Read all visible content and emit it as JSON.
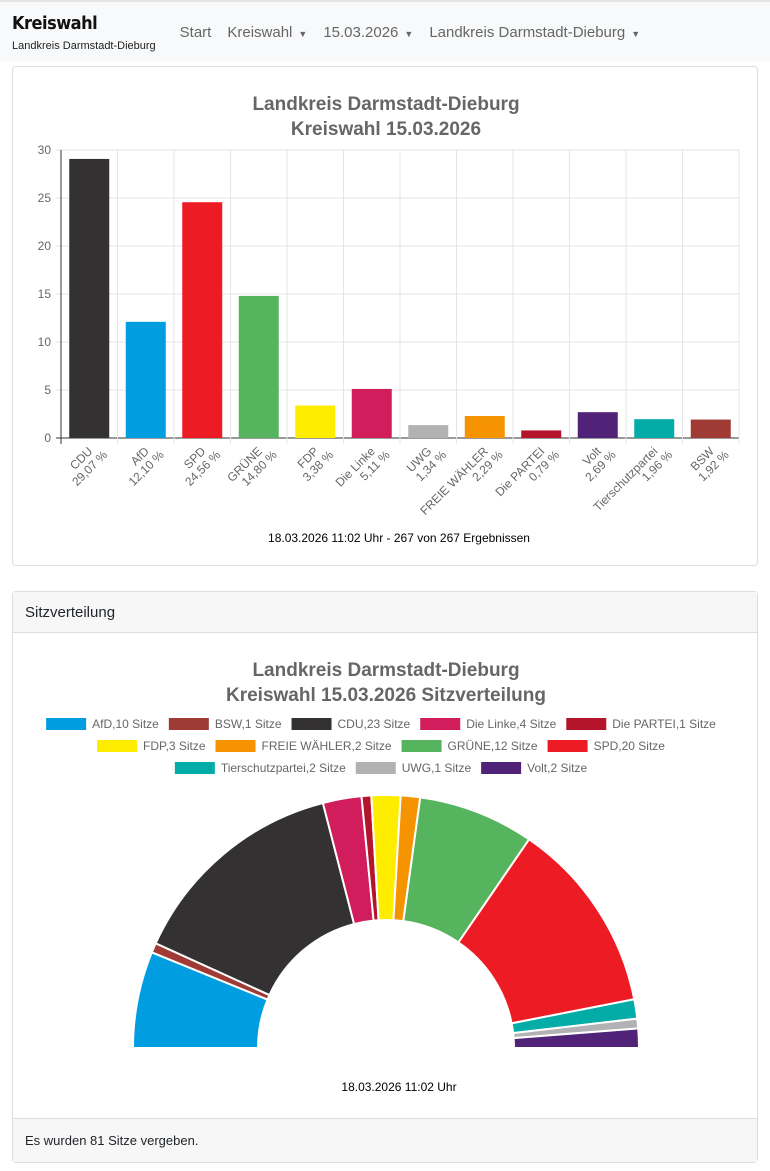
{
  "navbar": {
    "brand": "Kreiswahl",
    "subtitle": "Landkreis Darmstadt-Dieburg",
    "items": [
      {
        "label": "Start",
        "dropdown": false
      },
      {
        "label": "Kreiswahl",
        "dropdown": true
      },
      {
        "label": "15.03.2026",
        "dropdown": true
      },
      {
        "label": "Landkreis Darmstadt-Dieburg",
        "dropdown": true
      }
    ]
  },
  "chart_data": [
    {
      "type": "bar",
      "title": [
        "Landkreis Darmstadt-Dieburg",
        "Kreiswahl 15.03.2026"
      ],
      "ylim": [
        0,
        30
      ],
      "yticks": [
        0,
        5,
        10,
        15,
        20,
        25,
        30
      ],
      "grid": true,
      "categories": [
        "CDU",
        "AfD",
        "SPD",
        "GRÜNE",
        "FDP",
        "Die Linke",
        "UWG",
        "FREIE WÄHLER",
        "Die PARTEI",
        "Volt",
        "Tierschutzpartei",
        "BSW"
      ],
      "values": [
        29.07,
        12.1,
        24.56,
        14.8,
        3.38,
        5.11,
        1.34,
        2.29,
        0.79,
        2.69,
        1.96,
        1.92
      ],
      "value_labels": [
        "29,07 %",
        "12,10 %",
        "24,56 %",
        "14,80 %",
        "3,38 %",
        "5,11 %",
        "1,34 %",
        "2,29 %",
        "0,79 %",
        "2,69 %",
        "1,96 %",
        "1,92 %"
      ],
      "colors": [
        "#333132",
        "#009ee0",
        "#ed1c24",
        "#56b35e",
        "#ffed00",
        "#d21d5c",
        "#b2b1b3",
        "#f59300",
        "#b5152b",
        "#502379",
        "#04aca7",
        "#9f3a34"
      ],
      "footer": "18.03.2026 11:02 Uhr - 267 von 267 Ergebnissen"
    },
    {
      "type": "pie",
      "variant": "semicircle-doughnut",
      "title": [
        "Landkreis Darmstadt-Dieburg",
        "Kreiswahl 15.03.2026 Sitzverteilung"
      ],
      "legend": "top",
      "categories": [
        "AfD",
        "BSW",
        "CDU",
        "Die Linke",
        "Die PARTEI",
        "FDP",
        "FREIE WÄHLER",
        "GRÜNE",
        "SPD",
        "Tierschutzpartei",
        "UWG",
        "Volt"
      ],
      "values": [
        10,
        1,
        23,
        4,
        1,
        3,
        2,
        12,
        20,
        2,
        1,
        2
      ],
      "legend_labels": [
        "AfD,10 Sitze",
        "BSW,1 Sitze",
        "CDU,23 Sitze",
        "Die Linke,4 Sitze",
        "Die PARTEI,1 Sitze",
        "FDP,3 Sitze",
        "FREIE WÄHLER,2 Sitze",
        "GRÜNE,12 Sitze",
        "SPD,20 Sitze",
        "Tierschutzpartei,2 Sitze",
        "UWG,1 Sitze",
        "Volt,2 Sitze"
      ],
      "colors": [
        "#009ee0",
        "#9f3a34",
        "#333132",
        "#d21d5c",
        "#b5152b",
        "#ffed00",
        "#f59300",
        "#56b35e",
        "#ed1c24",
        "#04aca7",
        "#b2b1b3",
        "#502379"
      ],
      "footer": "18.03.2026 11:02 Uhr"
    }
  ],
  "seats": {
    "header": "Sitzverteilung",
    "footer": "Es wurden 81 Sitze vergeben."
  }
}
